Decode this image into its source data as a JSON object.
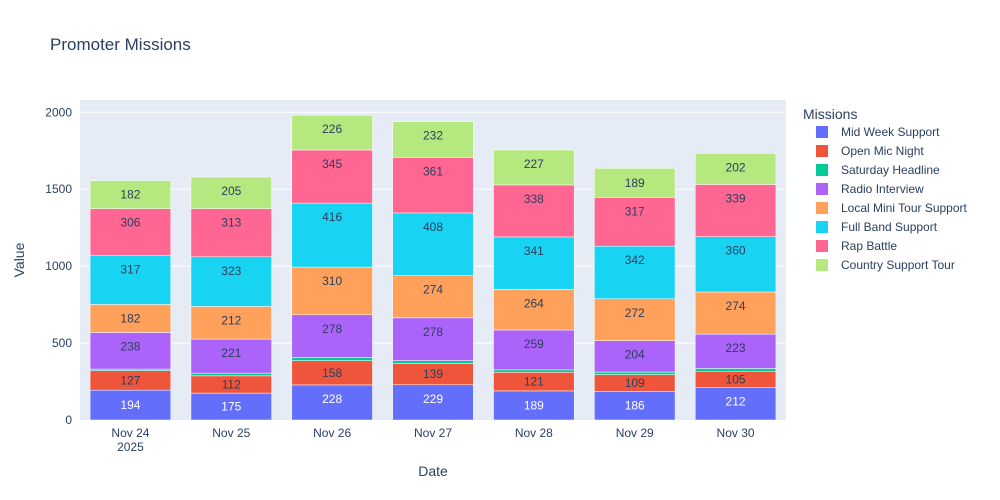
{
  "chart_data": {
    "type": "bar",
    "barmode": "stack",
    "title": "Promoter Missions",
    "xlabel": "Date",
    "ylabel": "Value",
    "ylim": [
      0,
      2080
    ],
    "yticks": [
      0,
      500,
      1000,
      1500,
      2000
    ],
    "categories": [
      "Nov 24",
      "Nov 25",
      "Nov 26",
      "Nov 27",
      "Nov 28",
      "Nov 29",
      "Nov 30"
    ],
    "first_tick_year": "2025",
    "grid": true,
    "legend_title": "Missions",
    "legend_position": "right",
    "series": [
      {
        "name": "Mid Week Support",
        "color": "#636efa",
        "label_color": "#ffffff",
        "values": [
          194,
          175,
          228,
          229,
          189,
          186,
          212
        ],
        "labels": [
          "194",
          "175",
          "228",
          "229",
          "189",
          "186",
          "212"
        ]
      },
      {
        "name": "Open Mic Night",
        "color": "#ef553b",
        "label_color": "#2a3f5f",
        "values": [
          127,
          112,
          158,
          139,
          121,
          109,
          105
        ],
        "labels": [
          "127",
          "112",
          "158",
          "139",
          "121",
          "109",
          "105"
        ]
      },
      {
        "name": "Saturday Headline",
        "color": "#00cc96",
        "label_color": "#2a3f5f",
        "values": [
          10,
          18,
          20,
          18,
          16,
          17,
          18
        ],
        "labels": [
          "",
          "",
          "",
          "",
          "",
          "",
          ""
        ]
      },
      {
        "name": "Radio Interview",
        "color": "#ab63fa",
        "label_color": "#2a3f5f",
        "values": [
          238,
          221,
          278,
          278,
          259,
          204,
          223
        ],
        "labels": [
          "238",
          "221",
          "278",
          "278",
          "259",
          "204",
          "223"
        ]
      },
      {
        "name": "Local Mini Tour Support",
        "color": "#ffa15a",
        "label_color": "#2a3f5f",
        "values": [
          182,
          212,
          310,
          274,
          264,
          272,
          274
        ],
        "labels": [
          "182",
          "212",
          "310",
          "274",
          "264",
          "272",
          "274"
        ]
      },
      {
        "name": "Full Band Support",
        "color": "#19d3f3",
        "label_color": "#2a3f5f",
        "values": [
          317,
          323,
          416,
          408,
          341,
          342,
          360
        ],
        "labels": [
          "317",
          "323",
          "416",
          "408",
          "341",
          "342",
          "360"
        ]
      },
      {
        "name": "Rap Battle",
        "color": "#ff6692",
        "label_color": "#2a3f5f",
        "values": [
          306,
          313,
          345,
          361,
          338,
          317,
          339
        ],
        "labels": [
          "306",
          "313",
          "345",
          "361",
          "338",
          "317",
          "339"
        ]
      },
      {
        "name": "Country Support Tour",
        "color": "#b6e880",
        "label_color": "#2a3f5f",
        "values": [
          182,
          205,
          226,
          232,
          227,
          189,
          202
        ],
        "labels": [
          "182",
          "205",
          "226",
          "232",
          "227",
          "189",
          "202"
        ]
      }
    ],
    "plot_bgcolor": "#e5ecf6",
    "grid_color": "#ffffff"
  }
}
